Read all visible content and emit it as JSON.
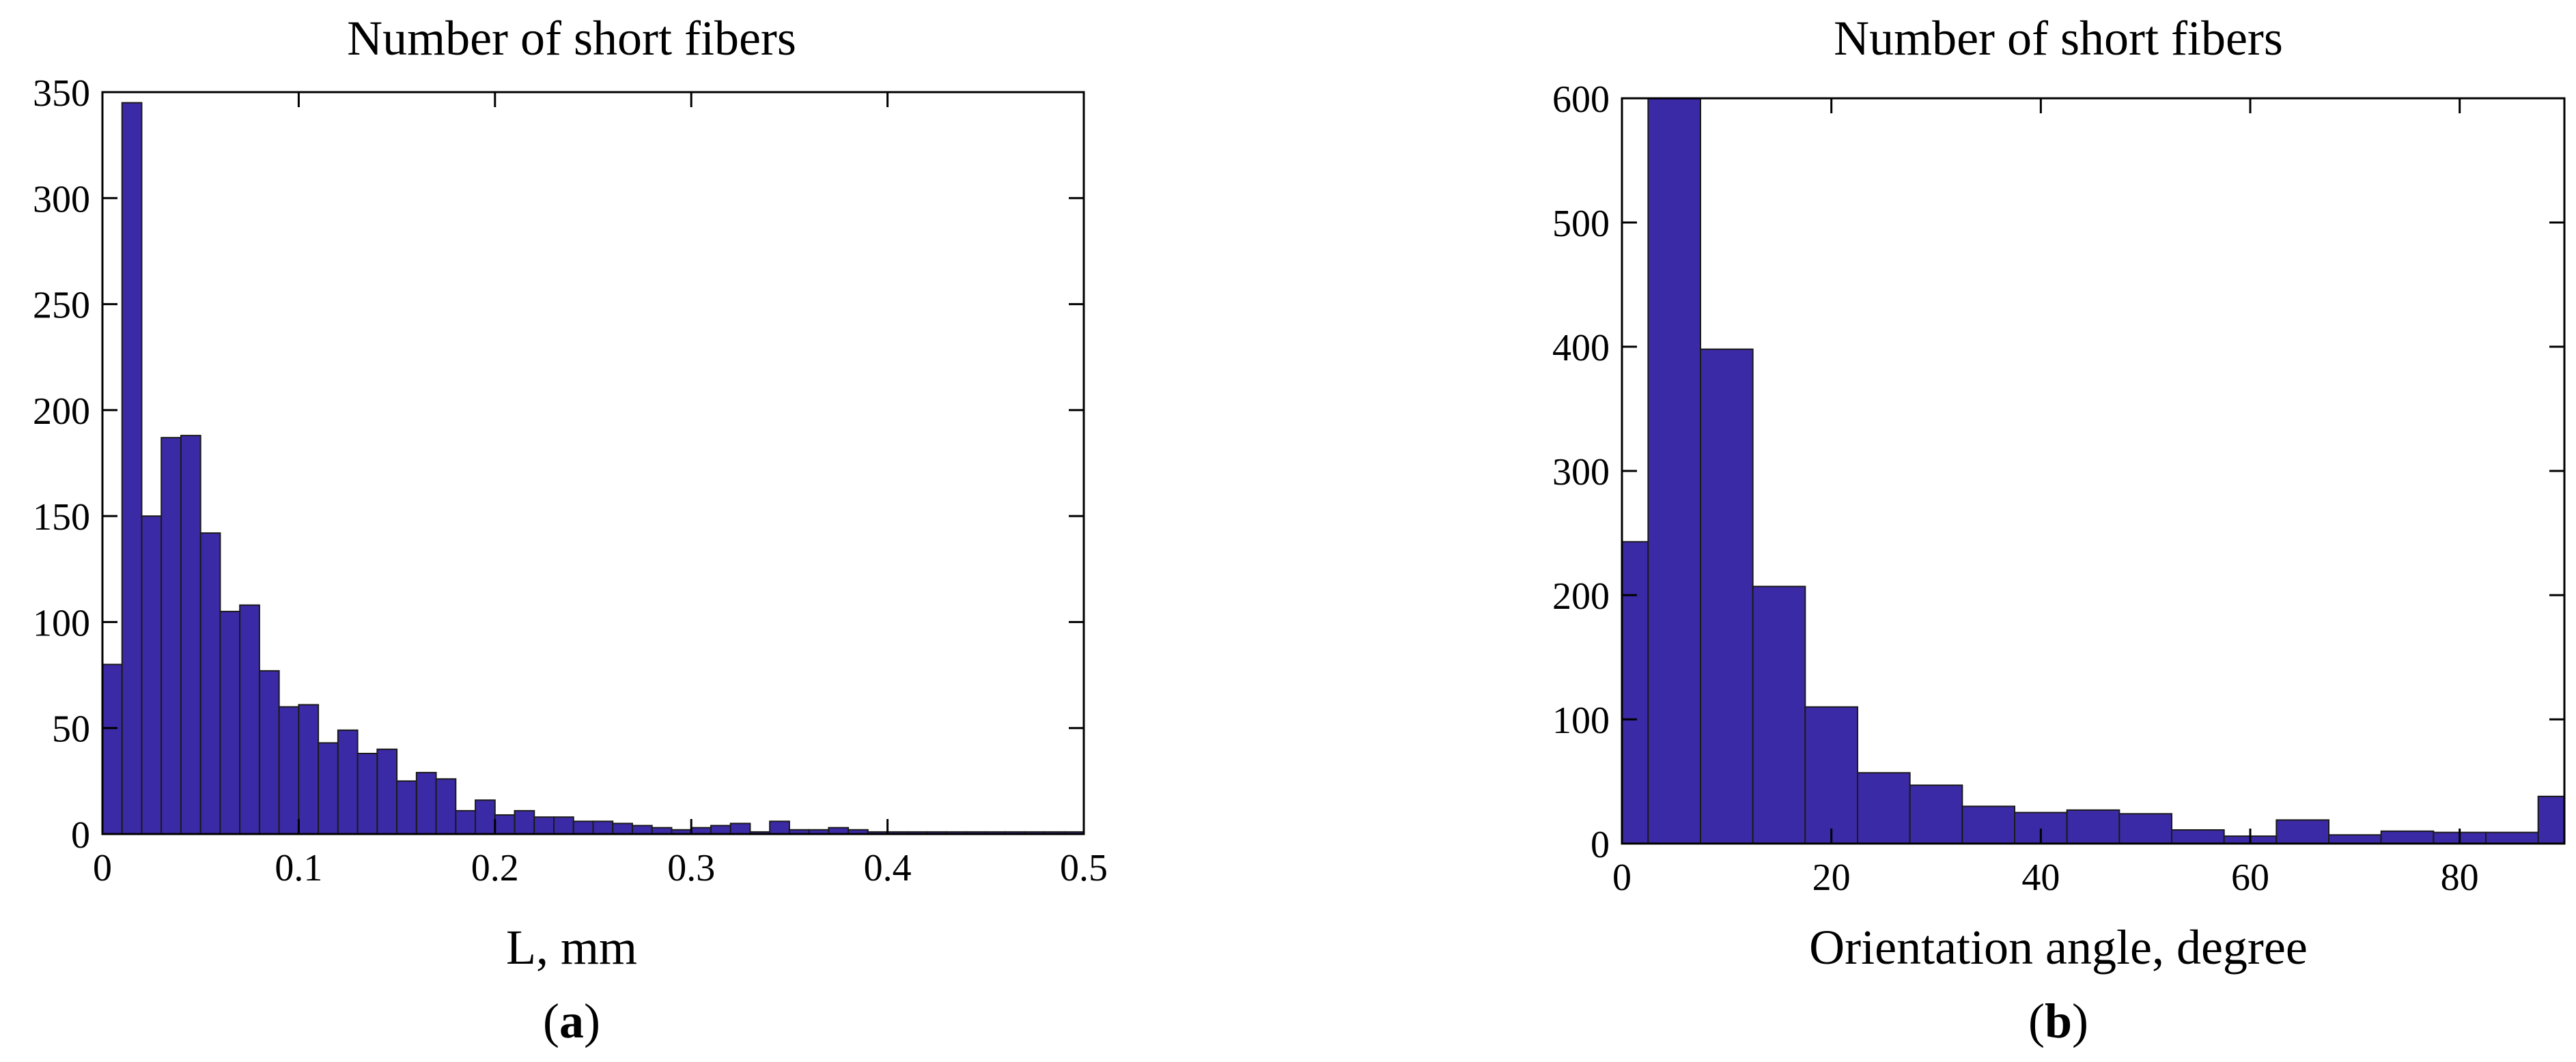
{
  "chart_data": [
    {
      "type": "bar",
      "title": "Number of short fibers",
      "xlabel": "L, mm",
      "ylabel": "",
      "caption_letter": "a",
      "xlim": [
        0,
        0.5
      ],
      "ylim": [
        0,
        350
      ],
      "xticks": [
        0,
        0.1,
        0.2,
        0.3,
        0.4,
        0.5
      ],
      "xtick_labels": [
        "0",
        "0.1",
        "0.2",
        "0.3",
        "0.4",
        "0.5"
      ],
      "yticks": [
        0,
        50,
        100,
        150,
        200,
        250,
        300,
        350
      ],
      "ytick_labels": [
        "0",
        "50",
        "100",
        "150",
        "200",
        "250",
        "300",
        "350"
      ],
      "bin_width": 0.01,
      "bin_start": 0,
      "values": [
        80,
        345,
        150,
        187,
        188,
        142,
        105,
        108,
        77,
        60,
        61,
        43,
        49,
        38,
        40,
        25,
        29,
        26,
        11,
        16,
        9,
        11,
        8,
        8,
        6,
        6,
        5,
        4,
        3,
        2,
        3,
        4,
        5,
        1,
        6,
        2,
        2,
        3,
        2,
        1,
        1,
        1,
        1,
        1,
        1,
        1,
        1,
        1,
        1,
        1
      ],
      "bar_color": "#3b2aa6"
    },
    {
      "type": "bar",
      "title": "Number of short fibers",
      "xlabel": "Orientation angle, degree",
      "ylabel": "",
      "caption_letter": "b",
      "xlim": [
        0,
        90
      ],
      "ylim": [
        0,
        600
      ],
      "xticks": [
        0,
        20,
        40,
        60,
        80
      ],
      "xtick_labels": [
        "0",
        "20",
        "40",
        "60",
        "80"
      ],
      "yticks": [
        0,
        100,
        200,
        300,
        400,
        500,
        600
      ],
      "ytick_labels": [
        "0",
        "100",
        "200",
        "300",
        "400",
        "500",
        "600"
      ],
      "bin_edges": [
        0,
        2.5,
        7.5,
        12.5,
        17.5,
        22.5,
        27.5,
        32.5,
        37.5,
        42.5,
        47.5,
        52.5,
        57.5,
        62.5,
        67.5,
        72.5,
        77.5,
        82.5,
        87.5,
        90
      ],
      "values": [
        243,
        600,
        398,
        207,
        110,
        57,
        47,
        30,
        25,
        27,
        24,
        11,
        6,
        19,
        7,
        10,
        9,
        9,
        38
      ],
      "bar_color": "#3b2aa6"
    }
  ]
}
